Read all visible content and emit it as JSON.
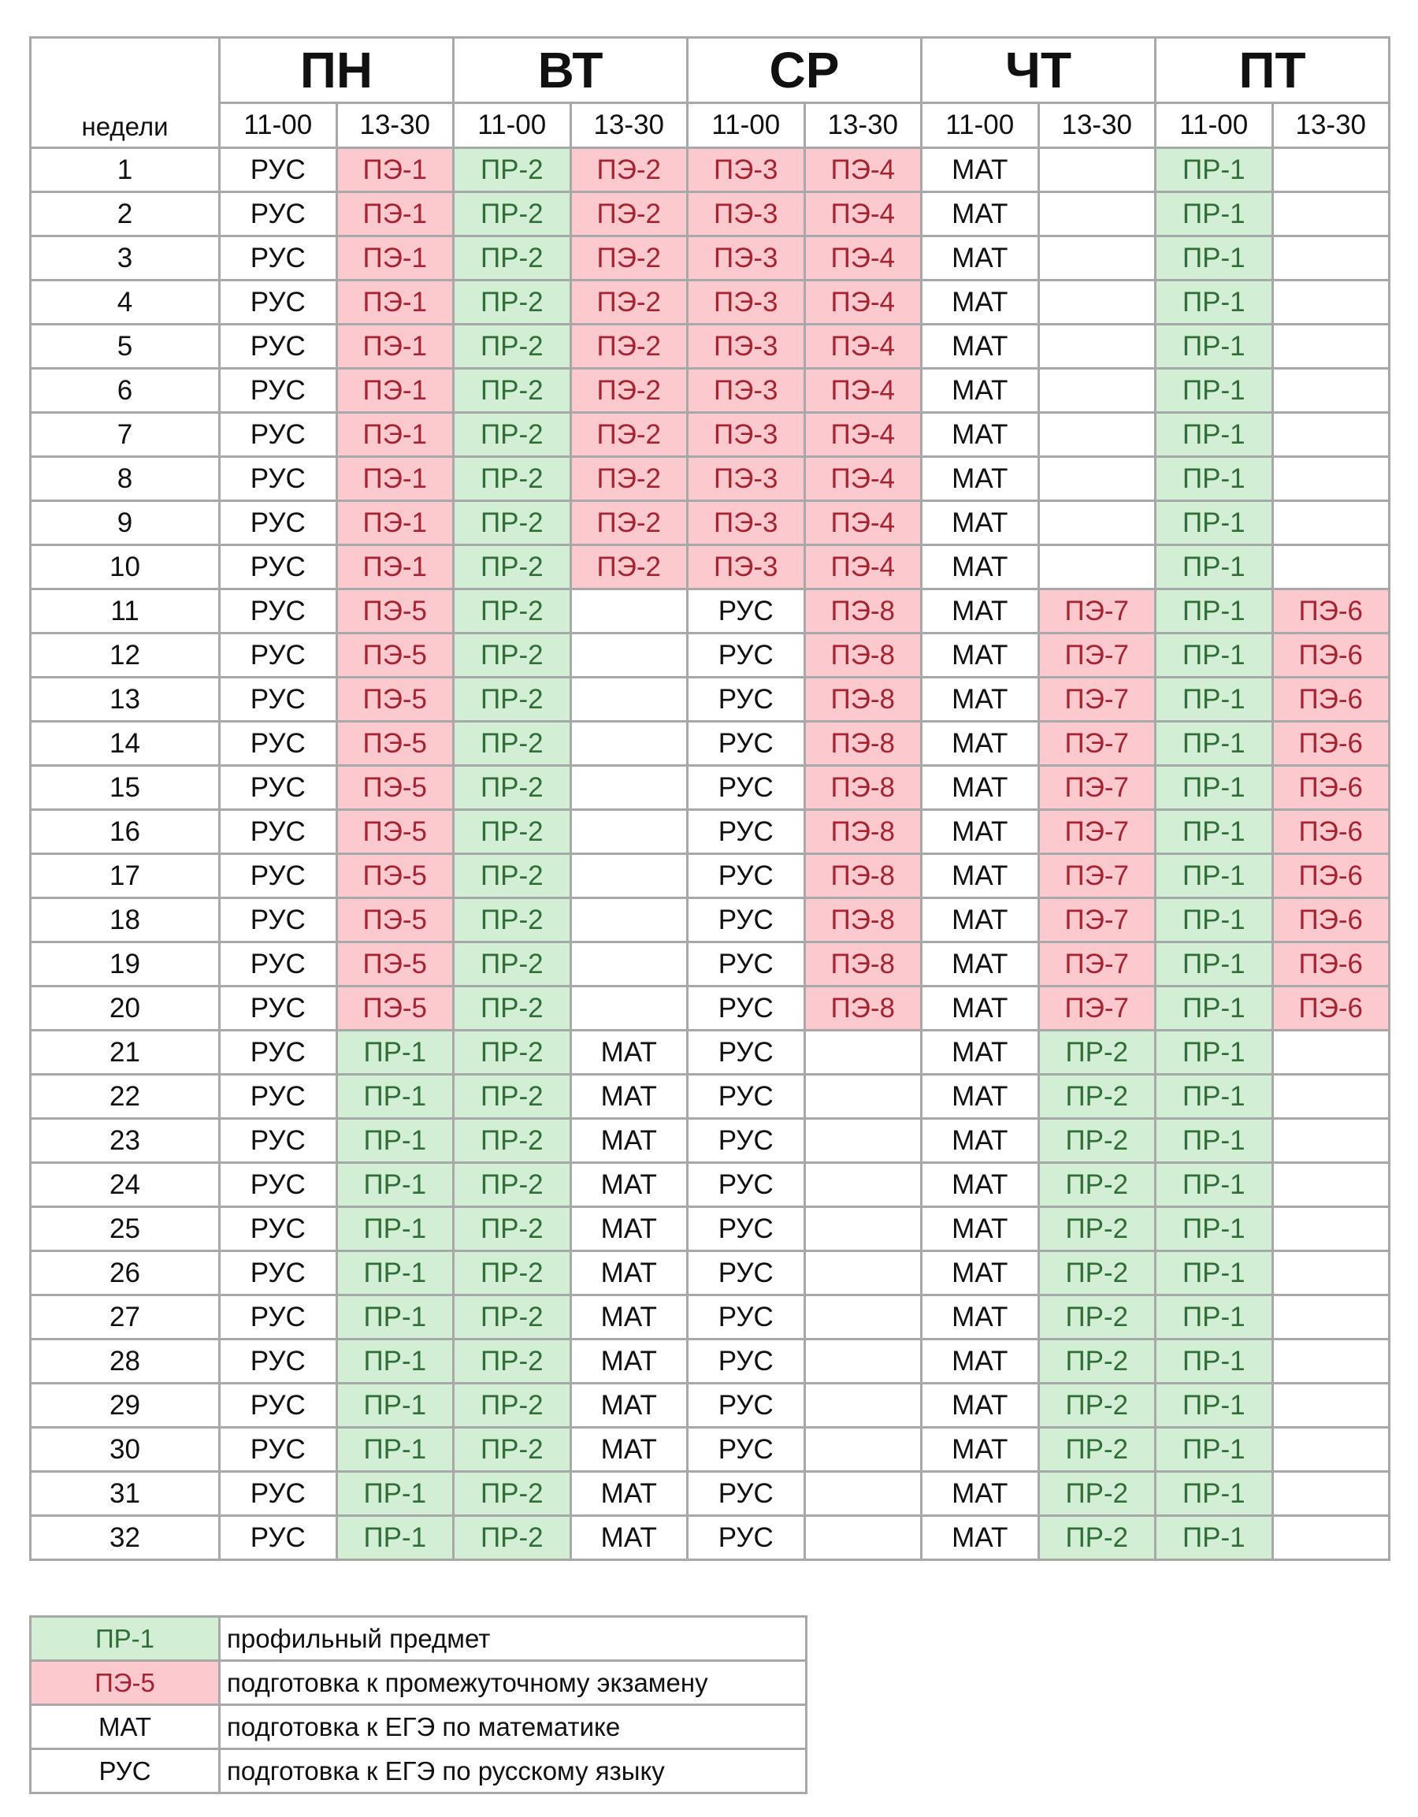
{
  "schedule": {
    "weeks_label": "недели",
    "days": [
      {
        "name": "ПН",
        "slots": [
          "11-00",
          "13-30"
        ]
      },
      {
        "name": "ВТ",
        "slots": [
          "11-00",
          "13-30"
        ]
      },
      {
        "name": "СР",
        "slots": [
          "11-00",
          "13-30"
        ]
      },
      {
        "name": "ЧТ",
        "slots": [
          "11-00",
          "13-30"
        ]
      },
      {
        "name": "ПТ",
        "slots": [
          "11-00",
          "13-30"
        ]
      }
    ],
    "rows": [
      {
        "week": "1",
        "cells": [
          "РУС",
          "ПЭ-1",
          "ПР-2",
          "ПЭ-2",
          "ПЭ-3",
          "ПЭ-4",
          "МАТ",
          "",
          "ПР-1",
          ""
        ]
      },
      {
        "week": "2",
        "cells": [
          "РУС",
          "ПЭ-1",
          "ПР-2",
          "ПЭ-2",
          "ПЭ-3",
          "ПЭ-4",
          "МАТ",
          "",
          "ПР-1",
          ""
        ]
      },
      {
        "week": "3",
        "cells": [
          "РУС",
          "ПЭ-1",
          "ПР-2",
          "ПЭ-2",
          "ПЭ-3",
          "ПЭ-4",
          "МАТ",
          "",
          "ПР-1",
          ""
        ]
      },
      {
        "week": "4",
        "cells": [
          "РУС",
          "ПЭ-1",
          "ПР-2",
          "ПЭ-2",
          "ПЭ-3",
          "ПЭ-4",
          "МАТ",
          "",
          "ПР-1",
          ""
        ]
      },
      {
        "week": "5",
        "cells": [
          "РУС",
          "ПЭ-1",
          "ПР-2",
          "ПЭ-2",
          "ПЭ-3",
          "ПЭ-4",
          "МАТ",
          "",
          "ПР-1",
          ""
        ]
      },
      {
        "week": "6",
        "cells": [
          "РУС",
          "ПЭ-1",
          "ПР-2",
          "ПЭ-2",
          "ПЭ-3",
          "ПЭ-4",
          "МАТ",
          "",
          "ПР-1",
          ""
        ]
      },
      {
        "week": "7",
        "cells": [
          "РУС",
          "ПЭ-1",
          "ПР-2",
          "ПЭ-2",
          "ПЭ-3",
          "ПЭ-4",
          "МАТ",
          "",
          "ПР-1",
          ""
        ]
      },
      {
        "week": "8",
        "cells": [
          "РУС",
          "ПЭ-1",
          "ПР-2",
          "ПЭ-2",
          "ПЭ-3",
          "ПЭ-4",
          "МАТ",
          "",
          "ПР-1",
          ""
        ]
      },
      {
        "week": "9",
        "cells": [
          "РУС",
          "ПЭ-1",
          "ПР-2",
          "ПЭ-2",
          "ПЭ-3",
          "ПЭ-4",
          "МАТ",
          "",
          "ПР-1",
          ""
        ]
      },
      {
        "week": "10",
        "cells": [
          "РУС",
          "ПЭ-1",
          "ПР-2",
          "ПЭ-2",
          "ПЭ-3",
          "ПЭ-4",
          "МАТ",
          "",
          "ПР-1",
          ""
        ]
      },
      {
        "week": "11",
        "cells": [
          "РУС",
          "ПЭ-5",
          "ПР-2",
          "",
          "РУС",
          "ПЭ-8",
          "МАТ",
          "ПЭ-7",
          "ПР-1",
          "ПЭ-6"
        ]
      },
      {
        "week": "12",
        "cells": [
          "РУС",
          "ПЭ-5",
          "ПР-2",
          "",
          "РУС",
          "ПЭ-8",
          "МАТ",
          "ПЭ-7",
          "ПР-1",
          "ПЭ-6"
        ]
      },
      {
        "week": "13",
        "cells": [
          "РУС",
          "ПЭ-5",
          "ПР-2",
          "",
          "РУС",
          "ПЭ-8",
          "МАТ",
          "ПЭ-7",
          "ПР-1",
          "ПЭ-6"
        ]
      },
      {
        "week": "14",
        "cells": [
          "РУС",
          "ПЭ-5",
          "ПР-2",
          "",
          "РУС",
          "ПЭ-8",
          "МАТ",
          "ПЭ-7",
          "ПР-1",
          "ПЭ-6"
        ]
      },
      {
        "week": "15",
        "cells": [
          "РУС",
          "ПЭ-5",
          "ПР-2",
          "",
          "РУС",
          "ПЭ-8",
          "МАТ",
          "ПЭ-7",
          "ПР-1",
          "ПЭ-6"
        ]
      },
      {
        "week": "16",
        "cells": [
          "РУС",
          "ПЭ-5",
          "ПР-2",
          "",
          "РУС",
          "ПЭ-8",
          "МАТ",
          "ПЭ-7",
          "ПР-1",
          "ПЭ-6"
        ]
      },
      {
        "week": "17",
        "cells": [
          "РУС",
          "ПЭ-5",
          "ПР-2",
          "",
          "РУС",
          "ПЭ-8",
          "МАТ",
          "ПЭ-7",
          "ПР-1",
          "ПЭ-6"
        ]
      },
      {
        "week": "18",
        "cells": [
          "РУС",
          "ПЭ-5",
          "ПР-2",
          "",
          "РУС",
          "ПЭ-8",
          "МАТ",
          "ПЭ-7",
          "ПР-1",
          "ПЭ-6"
        ]
      },
      {
        "week": "19",
        "cells": [
          "РУС",
          "ПЭ-5",
          "ПР-2",
          "",
          "РУС",
          "ПЭ-8",
          "МАТ",
          "ПЭ-7",
          "ПР-1",
          "ПЭ-6"
        ]
      },
      {
        "week": "20",
        "cells": [
          "РУС",
          "ПЭ-5",
          "ПР-2",
          "",
          "РУС",
          "ПЭ-8",
          "МАТ",
          "ПЭ-7",
          "ПР-1",
          "ПЭ-6"
        ]
      },
      {
        "week": "21",
        "cells": [
          "РУС",
          "ПР-1",
          "ПР-2",
          "МАТ",
          "РУС",
          "",
          "МАТ",
          "ПР-2",
          "ПР-1",
          ""
        ]
      },
      {
        "week": "22",
        "cells": [
          "РУС",
          "ПР-1",
          "ПР-2",
          "МАТ",
          "РУС",
          "",
          "МАТ",
          "ПР-2",
          "ПР-1",
          ""
        ]
      },
      {
        "week": "23",
        "cells": [
          "РУС",
          "ПР-1",
          "ПР-2",
          "МАТ",
          "РУС",
          "",
          "МАТ",
          "ПР-2",
          "ПР-1",
          ""
        ]
      },
      {
        "week": "24",
        "cells": [
          "РУС",
          "ПР-1",
          "ПР-2",
          "МАТ",
          "РУС",
          "",
          "МАТ",
          "ПР-2",
          "ПР-1",
          ""
        ]
      },
      {
        "week": "25",
        "cells": [
          "РУС",
          "ПР-1",
          "ПР-2",
          "МАТ",
          "РУС",
          "",
          "МАТ",
          "ПР-2",
          "ПР-1",
          ""
        ]
      },
      {
        "week": "26",
        "cells": [
          "РУС",
          "ПР-1",
          "ПР-2",
          "МАТ",
          "РУС",
          "",
          "МАТ",
          "ПР-2",
          "ПР-1",
          ""
        ]
      },
      {
        "week": "27",
        "cells": [
          "РУС",
          "ПР-1",
          "ПР-2",
          "МАТ",
          "РУС",
          "",
          "МАТ",
          "ПР-2",
          "ПР-1",
          ""
        ]
      },
      {
        "week": "28",
        "cells": [
          "РУС",
          "ПР-1",
          "ПР-2",
          "МАТ",
          "РУС",
          "",
          "МАТ",
          "ПР-2",
          "ПР-1",
          ""
        ]
      },
      {
        "week": "29",
        "cells": [
          "РУС",
          "ПР-1",
          "ПР-2",
          "МАТ",
          "РУС",
          "",
          "МАТ",
          "ПР-2",
          "ПР-1",
          ""
        ]
      },
      {
        "week": "30",
        "cells": [
          "РУС",
          "ПР-1",
          "ПР-2",
          "МАТ",
          "РУС",
          "",
          "МАТ",
          "ПР-2",
          "ПР-1",
          ""
        ]
      },
      {
        "week": "31",
        "cells": [
          "РУС",
          "ПР-1",
          "ПР-2",
          "МАТ",
          "РУС",
          "",
          "МАТ",
          "ПР-2",
          "ПР-1",
          ""
        ]
      },
      {
        "week": "32",
        "cells": [
          "РУС",
          "ПР-1",
          "ПР-2",
          "МАТ",
          "РУС",
          "",
          "МАТ",
          "ПР-2",
          "ПР-1",
          ""
        ]
      }
    ]
  },
  "legend": {
    "items": [
      {
        "code": "ПР-1",
        "description": "профильный предмет",
        "color": "#d2eed5",
        "text_color": "#2f6e37"
      },
      {
        "code": "ПЭ-5",
        "description": "подготовка к промежуточному экзамену",
        "color": "#fcc9cf",
        "text_color": "#a8232f"
      },
      {
        "code": "МАТ",
        "description": "подготовка к ЕГЭ по математике",
        "color": "#ffffff",
        "text_color": "#111111"
      },
      {
        "code": "РУС",
        "description": "подготовка к ЕГЭ по русскому языку",
        "color": "#ffffff",
        "text_color": "#111111"
      }
    ]
  },
  "colors": {
    "exam_prep_bg": "#fcc9cf",
    "exam_prep_text": "#a8232f",
    "profile_bg": "#d2eed5",
    "profile_text": "#2f6e37",
    "grid_border": "#a8a8a8"
  }
}
